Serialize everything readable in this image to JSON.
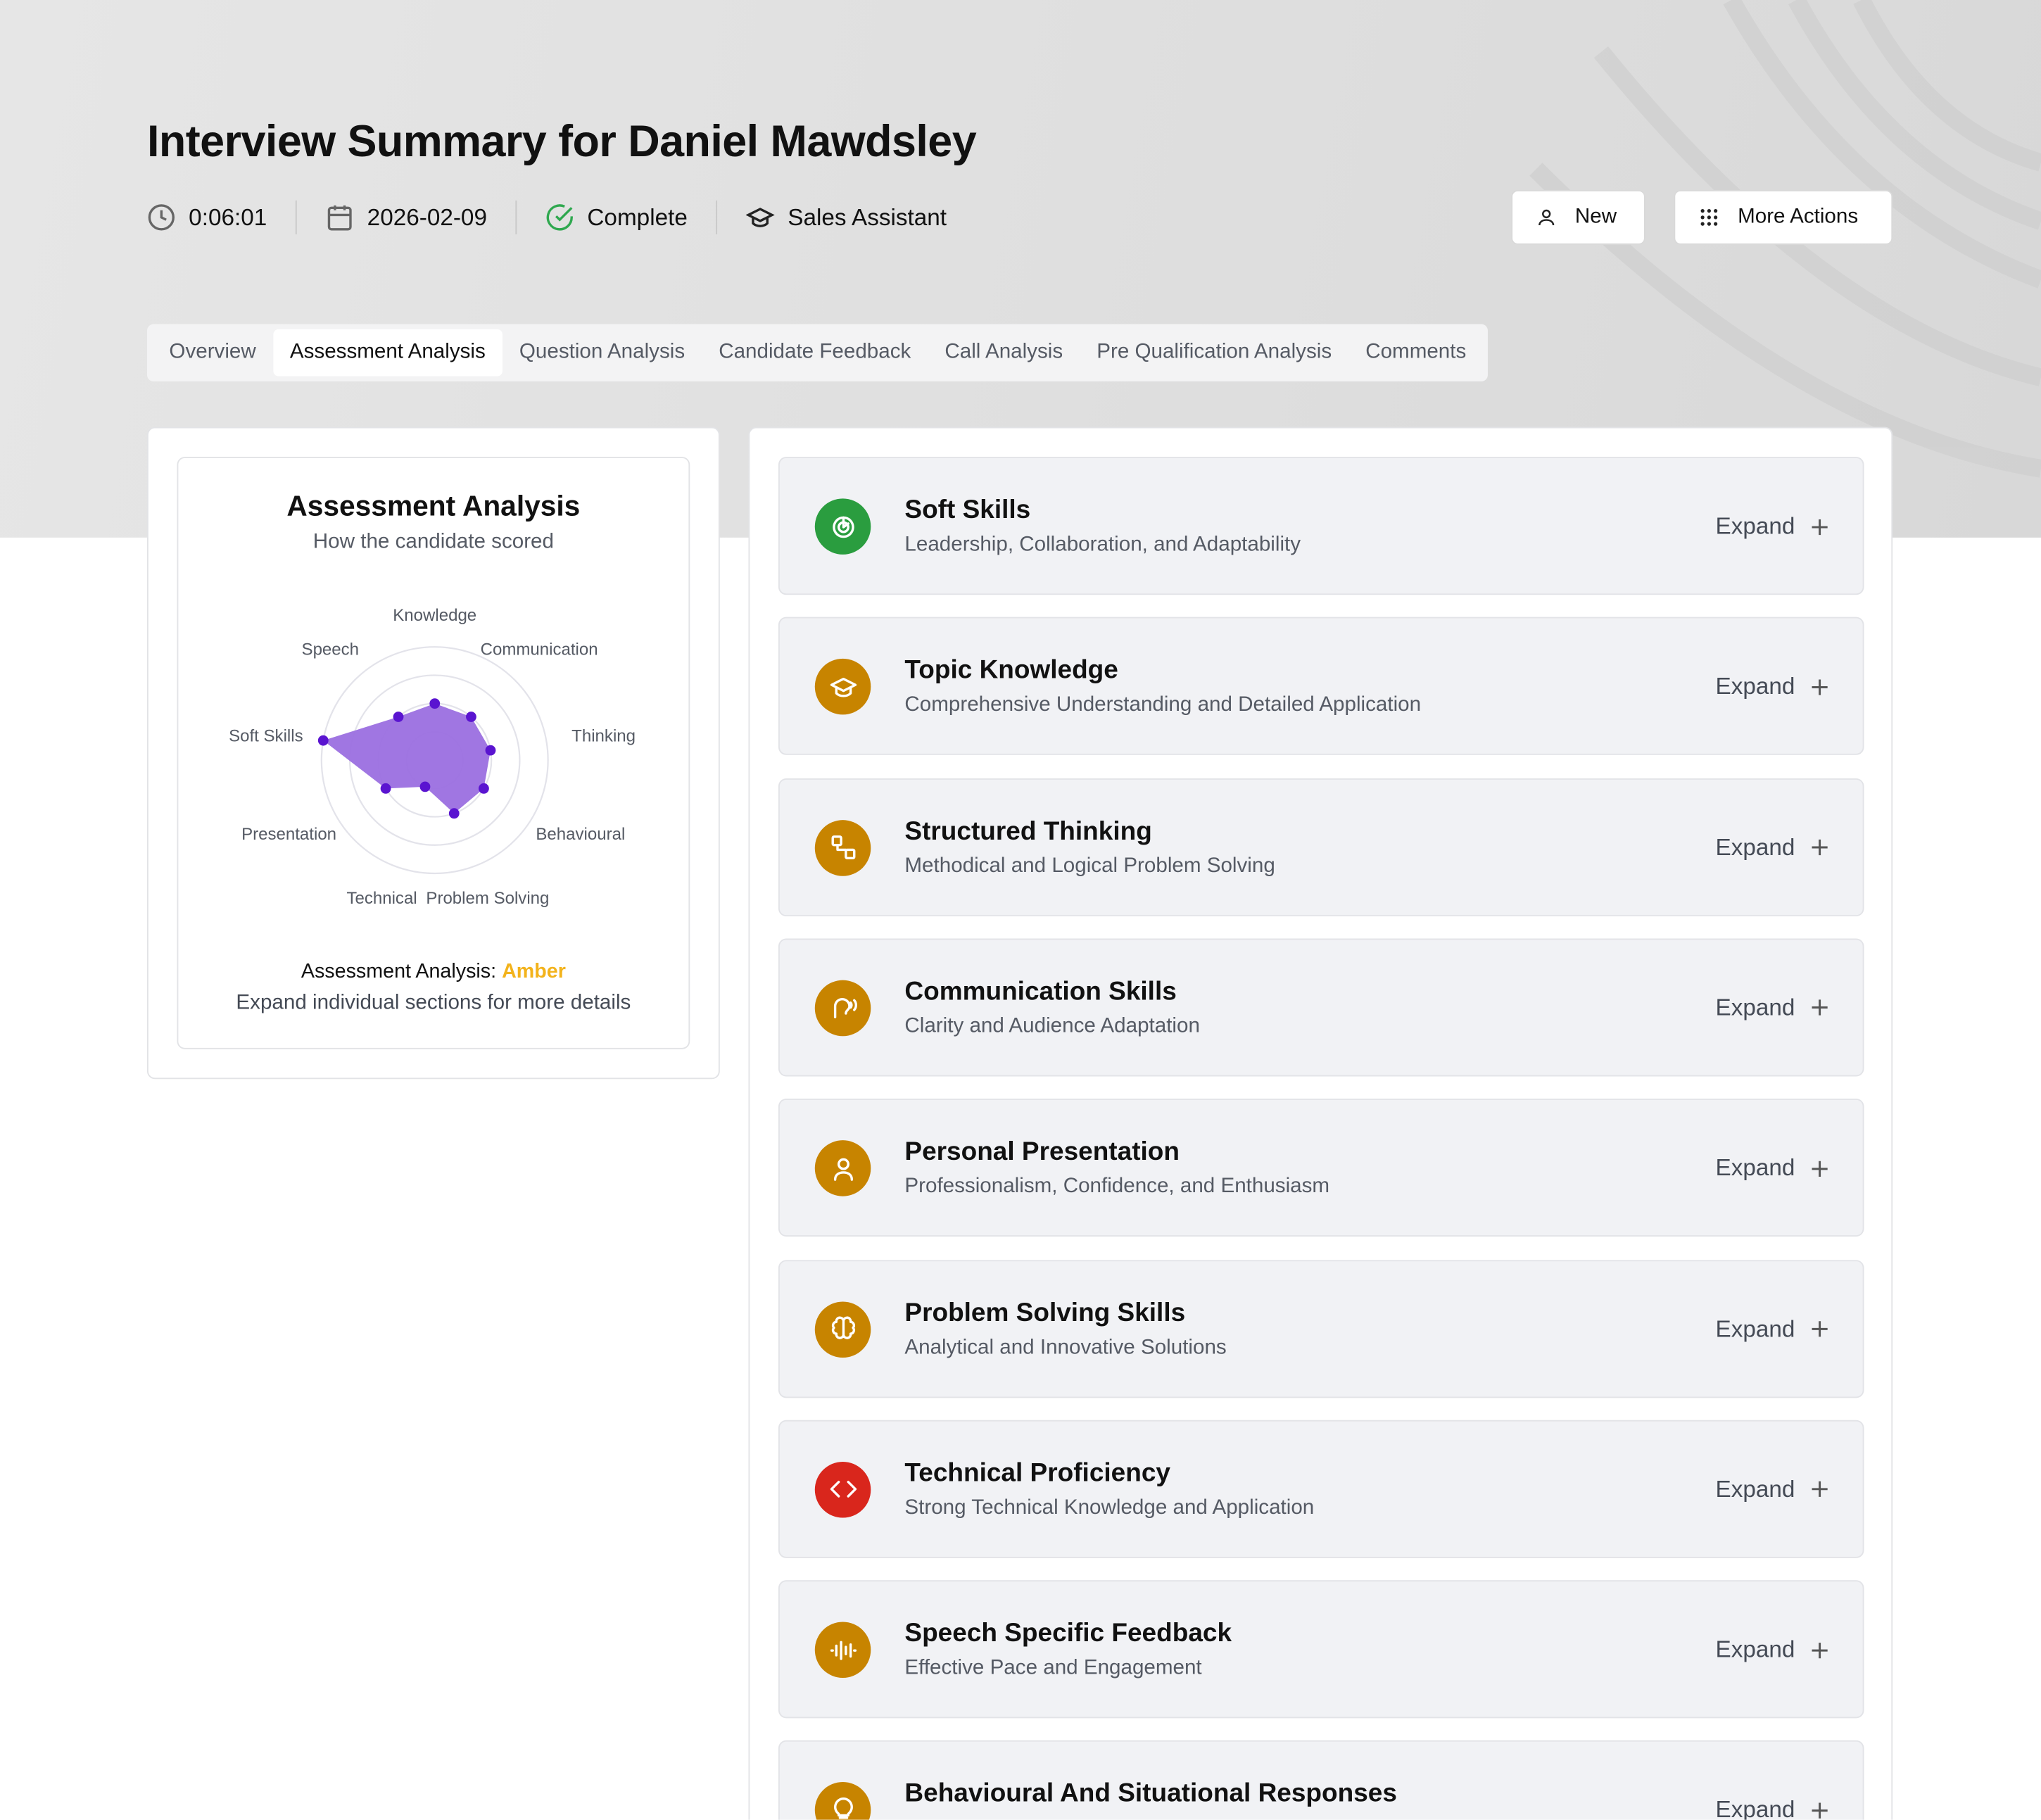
{
  "header": {
    "title": "Interview Summary for Daniel Mawdsley",
    "duration": "0:06:01",
    "date": "2026-02-09",
    "status": "Complete",
    "role": "Sales Assistant",
    "status_color": "#2fa84f"
  },
  "actions": {
    "new_label": "New",
    "more_label": "More Actions"
  },
  "tabs": [
    {
      "label": "Overview"
    },
    {
      "label": "Assessment Analysis",
      "active": true
    },
    {
      "label": "Question Analysis"
    },
    {
      "label": "Candidate Feedback"
    },
    {
      "label": "Call Analysis"
    },
    {
      "label": "Pre Qualification Analysis"
    },
    {
      "label": "Comments"
    }
  ],
  "summary": {
    "title": "Assessment Analysis",
    "subtitle": "How the candidate scored",
    "result_label": "Assessment Analysis:",
    "result_value": "Amber",
    "result_color": "#f3b31c",
    "hint": "Expand individual sections for more details"
  },
  "chart_data": {
    "type": "radar",
    "axes": [
      "Knowledge",
      "Communication",
      "Thinking",
      "Behavioural",
      "Problem Solving",
      "Technical",
      "Presentation",
      "Soft Skills",
      "Speech"
    ],
    "values": [
      50,
      50,
      50,
      50,
      50,
      25,
      50,
      100,
      50
    ],
    "range": [
      0,
      100
    ],
    "rings": 4,
    "fill_color": "#9b6fe0",
    "point_color": "#5a14d0"
  },
  "sections": [
    {
      "title": "Soft Skills",
      "subtitle": "Leadership, Collaboration, and Adaptability",
      "icon": "target-icon",
      "color": "#2a9d3f"
    },
    {
      "title": "Topic Knowledge",
      "subtitle": "Comprehensive Understanding and Detailed Application",
      "icon": "graduation-cap-icon",
      "color": "#c78400"
    },
    {
      "title": "Structured Thinking",
      "subtitle": "Methodical and Logical Problem Solving",
      "icon": "workflow-icon",
      "color": "#c78400"
    },
    {
      "title": "Communication Skills",
      "subtitle": "Clarity and Audience Adaptation",
      "icon": "speech-icon",
      "color": "#c78400"
    },
    {
      "title": "Personal Presentation",
      "subtitle": "Professionalism, Confidence, and Enthusiasm",
      "icon": "user-icon",
      "color": "#c78400"
    },
    {
      "title": "Problem Solving Skills",
      "subtitle": "Analytical and Innovative Solutions",
      "icon": "brain-icon",
      "color": "#c78400"
    },
    {
      "title": "Technical Proficiency",
      "subtitle": "Strong Technical Knowledge and Application",
      "icon": "code-icon",
      "color": "#d9261c"
    },
    {
      "title": "Speech Specific Feedback",
      "subtitle": "Effective Pace and Engagement",
      "icon": "audio-waveform-icon",
      "color": "#c78400"
    },
    {
      "title": "Behavioural And Situational Responses",
      "subtitle": "",
      "icon": "lightbulb-icon",
      "color": "#c78400"
    }
  ],
  "expand_label": "Expand"
}
